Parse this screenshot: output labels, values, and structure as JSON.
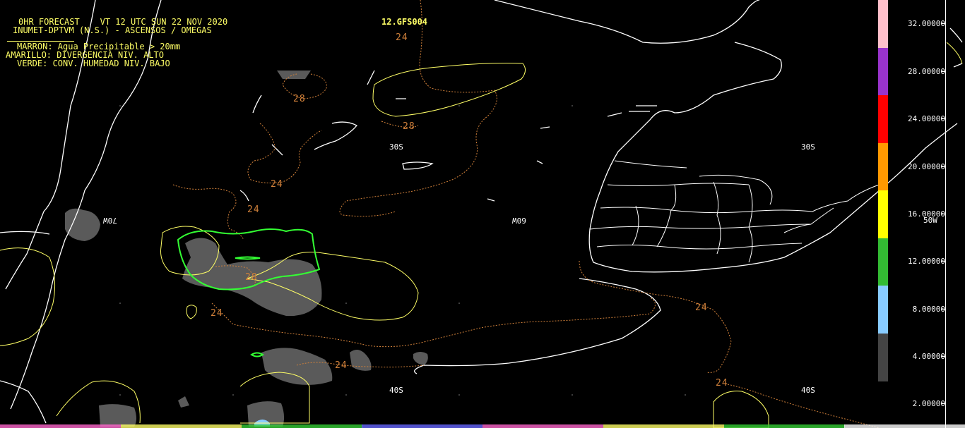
{
  "header": {
    "line1": "0HR FORECAST    VT 12 UTC SUN 22 NOV 2020",
    "line2": "INUMET-DPTVM (N.S.) - ASCENSOS / OMEGAS",
    "line3": "MARRON: Agua Precipitable > 20mm",
    "line4": "AMARILLO: DIVERGENCIA NIV. ALTO",
    "line5": "VERDE: CONV. HUMEDAD NIV. BAJO",
    "model_label": "12.GFS004"
  },
  "grid_labels": {
    "lat_30s_center": "30S",
    "lat_30s_right": "30S",
    "lat_40s_center": "40S",
    "lat_40s_right": "40S",
    "lon_60w": "60W",
    "lon_70w": "70W",
    "lat_50w": "50W"
  },
  "contour_labels": [
    "24",
    "28",
    "28",
    "24",
    "24",
    "28",
    "24",
    "24",
    "24",
    "24"
  ],
  "colorbar": {
    "labels": [
      "32.00000",
      "28.00000",
      "24.00000",
      "20.00000",
      "16.00000",
      "12.00000",
      "8.00000",
      "4.00000",
      "2.00000"
    ],
    "colors": [
      "#ffc0cb",
      "#9933cc",
      "#ff0000",
      "#ff9900",
      "#ffff00",
      "#33bb33",
      "#88ccff",
      "#444444"
    ]
  },
  "legend_colors": {
    "precipitable_water": "#d0803a",
    "upper_divergence": "#ffff66",
    "low_level_convergence": "#33ff33",
    "omega_shading": "#5a5a5a",
    "coastline": "#ffffff"
  }
}
